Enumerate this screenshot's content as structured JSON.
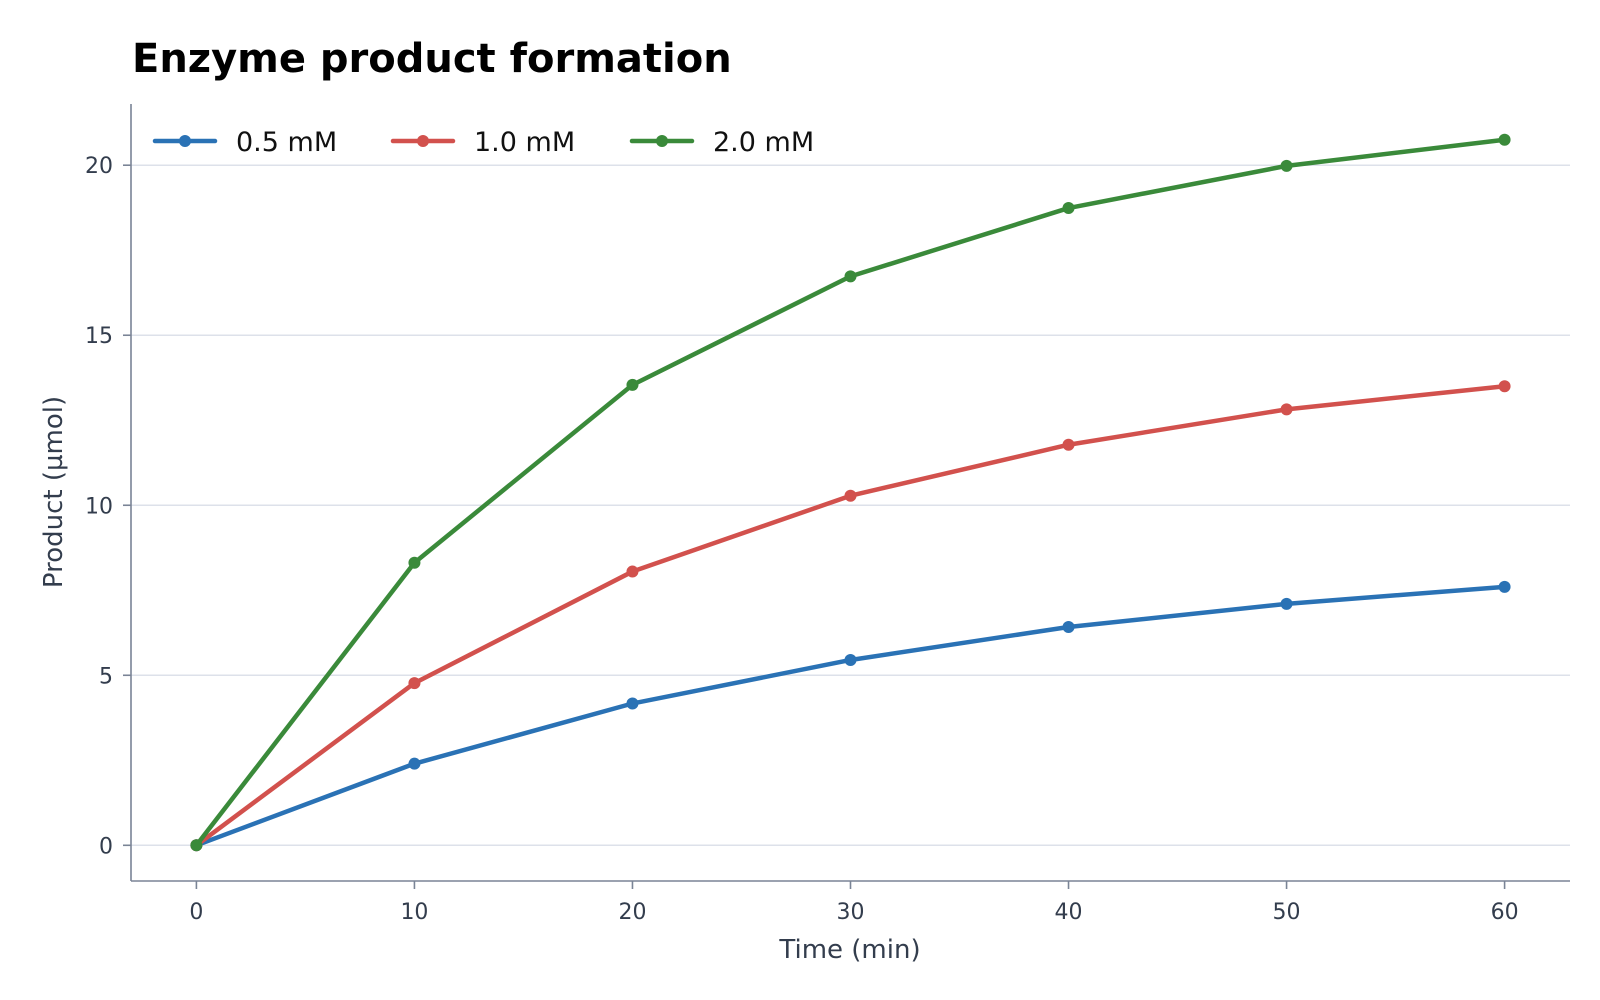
{
  "chart_data": {
    "type": "line",
    "title": "Enzyme product formation",
    "xlabel": "Time (min)",
    "ylabel": "Product (µmol)",
    "x": [
      0,
      10,
      20,
      30,
      40,
      50,
      60
    ],
    "xticks": [
      0,
      10,
      20,
      30,
      40,
      50,
      60
    ],
    "yticks": [
      0,
      5,
      10,
      15,
      20
    ],
    "xlim": [
      -3,
      63
    ],
    "ylim": [
      -1.05,
      21.8
    ],
    "grid": "horizontal",
    "legend": "top-left",
    "series": [
      {
        "name": "0.5 mM",
        "color": "#2a72b5",
        "values": [
          0,
          2.4,
          4.17,
          5.45,
          6.42,
          7.1,
          7.6
        ]
      },
      {
        "name": "1.0 mM",
        "color": "#d2514d",
        "values": [
          0,
          4.77,
          8.05,
          10.28,
          11.78,
          12.82,
          13.5
        ]
      },
      {
        "name": "2.0 mM",
        "color": "#3a8a3a",
        "values": [
          0,
          8.31,
          13.54,
          16.73,
          18.74,
          19.98,
          20.75
        ]
      }
    ]
  }
}
